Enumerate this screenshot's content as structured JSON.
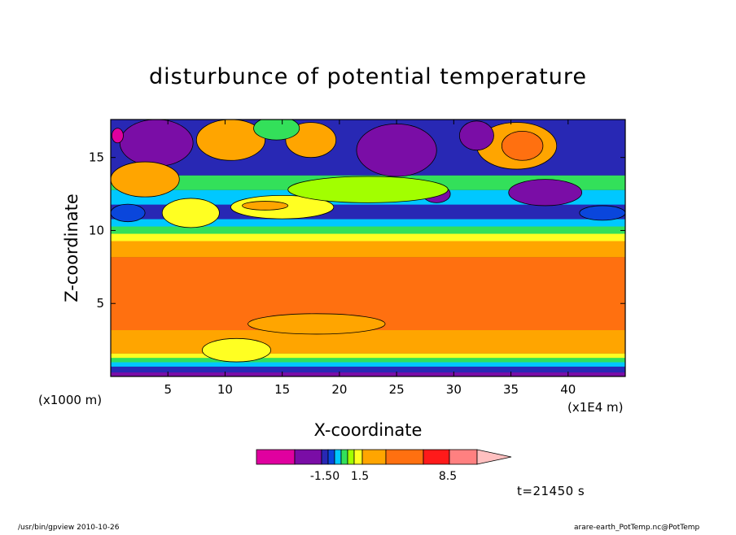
{
  "chart_data": {
    "type": "heatmap",
    "title": "disturbunce of potential temperature",
    "xlabel": "X-coordinate",
    "ylabel": "Z-coordinate",
    "x_unit_left": "(x1000 m)",
    "x_unit_right": "(x1E4 m)",
    "xlim": [
      0,
      45
    ],
    "ylim": [
      0,
      17.6
    ],
    "x_ticks": [
      5,
      10,
      15,
      20,
      25,
      30,
      35,
      40
    ],
    "y_ticks": [
      5,
      10,
      15
    ],
    "time_label": "t=21450 s",
    "footer_left": "/usr/bin/gpview  2010-10-26",
    "footer_right": "arare-earth_PotTemp.nc@PotTemp",
    "colorbar": {
      "colors": [
        "#e0009f",
        "#7a0da6",
        "#2828b4",
        "#0a46dc",
        "#00c8ff",
        "#33e05a",
        "#a2ff00",
        "#ffff22",
        "#ffa500",
        "#ff7010",
        "#ff1a1a",
        "#ff8080",
        "#ffc0c0"
      ],
      "labels": [
        "-1.50",
        "1.5",
        "8.5"
      ]
    },
    "bands": [
      {
        "z": [
          0,
          0.3
        ],
        "value": "-1.0",
        "color": "#7a0da6"
      },
      {
        "z": [
          0.3,
          0.7
        ],
        "value": "-0.5",
        "color": "#2828b4"
      },
      {
        "z": [
          0.7,
          1.0
        ],
        "value": "0.0",
        "color": "#00c8ff"
      },
      {
        "z": [
          1.0,
          1.3
        ],
        "value": "0.5",
        "color": "#33e05a"
      },
      {
        "z": [
          1.3,
          1.6
        ],
        "value": "1.0",
        "color": "#ffff22"
      },
      {
        "z": [
          1.6,
          3.2
        ],
        "value": "2.5",
        "color": "#ffa500"
      },
      {
        "z": [
          3.2,
          8.2
        ],
        "value": "5.0",
        "color": "#ff7010"
      },
      {
        "z": [
          8.2,
          9.3
        ],
        "value": "2.5",
        "color": "#ffa500"
      },
      {
        "z": [
          9.3,
          9.8
        ],
        "value": "1.0",
        "color": "#ffff22"
      },
      {
        "z": [
          9.8,
          10.3
        ],
        "value": "0.5",
        "color": "#33e05a"
      },
      {
        "z": [
          10.3,
          10.8
        ],
        "value": "0.0",
        "color": "#00c8ff"
      },
      {
        "z": [
          10.8,
          11.8
        ],
        "value": "-0.5",
        "color": "#2828b4"
      },
      {
        "z": [
          11.8,
          12.8
        ],
        "value": "0.0",
        "color": "#00c8ff"
      },
      {
        "z": [
          12.8,
          13.8
        ],
        "value": "0.5",
        "color": "#33e05a"
      },
      {
        "z": [
          13.8,
          17.6
        ],
        "value": "-0.5",
        "color": "#2828b4"
      }
    ],
    "features": [
      {
        "x": 10.5,
        "z": 16.2,
        "rx": 3.0,
        "rz": 1.4,
        "color": "#ffa500",
        "value": "2.5"
      },
      {
        "x": 17.5,
        "z": 16.2,
        "rx": 2.2,
        "rz": 1.2,
        "color": "#ffa500",
        "value": "2.5"
      },
      {
        "x": 35.5,
        "z": 15.8,
        "rx": 3.5,
        "rz": 1.6,
        "color": "#ffa500",
        "value": "2.5"
      },
      {
        "x": 36.0,
        "z": 15.8,
        "rx": 1.8,
        "rz": 1.0,
        "color": "#ff7010",
        "value": "5.0"
      },
      {
        "x": 4.0,
        "z": 16.0,
        "rx": 3.2,
        "rz": 1.6,
        "color": "#7a0da6",
        "value": "-1.0"
      },
      {
        "x": 25.0,
        "z": 15.5,
        "rx": 3.5,
        "rz": 1.8,
        "color": "#7a0da6",
        "value": "-1.0"
      },
      {
        "x": 38.0,
        "z": 12.6,
        "rx": 3.2,
        "rz": 0.9,
        "color": "#7a0da6",
        "value": "-1.0"
      },
      {
        "x": 28.5,
        "z": 12.5,
        "rx": 1.2,
        "rz": 0.6,
        "color": "#7a0da6",
        "value": "-1.0"
      },
      {
        "x": 32.0,
        "z": 16.5,
        "rx": 1.5,
        "rz": 1.0,
        "color": "#7a0da6",
        "value": "-1.0"
      },
      {
        "x": 0.6,
        "z": 16.5,
        "rx": 0.5,
        "rz": 0.5,
        "color": "#e0009f",
        "value": "-1.5"
      },
      {
        "x": 3.0,
        "z": 13.5,
        "rx": 3.0,
        "rz": 1.2,
        "color": "#ffa500",
        "value": "2.5"
      },
      {
        "x": 7.0,
        "z": 11.2,
        "rx": 2.5,
        "rz": 1.0,
        "color": "#ffff22",
        "value": "1.0"
      },
      {
        "x": 15.0,
        "z": 11.6,
        "rx": 4.5,
        "rz": 0.8,
        "color": "#ffff22",
        "value": "1.0"
      },
      {
        "x": 13.5,
        "z": 11.7,
        "rx": 2.0,
        "rz": 0.3,
        "color": "#ffa500",
        "value": "2.5"
      },
      {
        "x": 22.5,
        "z": 12.8,
        "rx": 7.0,
        "rz": 0.9,
        "color": "#a2ff00",
        "value": "0.8"
      },
      {
        "x": 14.5,
        "z": 17.0,
        "rx": 2.0,
        "rz": 0.8,
        "color": "#33e05a",
        "value": "0.5"
      },
      {
        "x": 1.5,
        "z": 11.2,
        "rx": 1.5,
        "rz": 0.6,
        "color": "#0a46dc",
        "value": "-0.3"
      },
      {
        "x": 43.0,
        "z": 11.2,
        "rx": 2.0,
        "rz": 0.5,
        "color": "#0a46dc",
        "value": "-0.3"
      },
      {
        "x": 11.0,
        "z": 1.8,
        "rx": 3.0,
        "rz": 0.8,
        "color": "#ffff22",
        "value": "1.0"
      },
      {
        "x": 18.0,
        "z": 3.6,
        "rx": 6.0,
        "rz": 0.7,
        "color": "#ffa500",
        "value": "2.5"
      }
    ]
  }
}
